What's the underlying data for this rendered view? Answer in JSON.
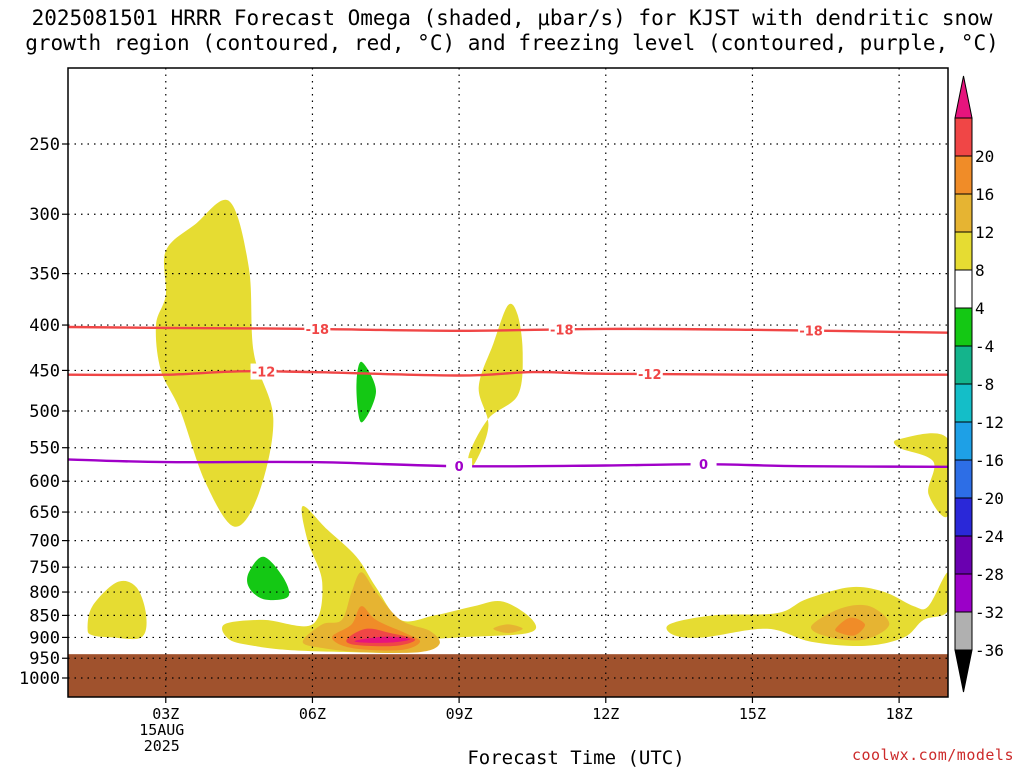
{
  "title_line1": "2025081501 HRRR Forecast Omega (shaded, μbar/s) for KJST with dendritic snow",
  "title_line2": "growth region (contoured, red, °C) and freezing level (contoured, purple, °C)",
  "credit": "coolwx.com/models",
  "chart_data": {
    "type": "contour",
    "xlabel": "Forecast Time (UTC)",
    "ylabel": "",
    "x_units": "hours since 2025-08-15 00Z",
    "xlim": [
      1,
      19
    ],
    "x_ticks": [
      {
        "x": 3,
        "label": "03Z",
        "sub": [
          "15AUG",
          "2025"
        ]
      },
      {
        "x": 6,
        "label": "06Z",
        "sub": []
      },
      {
        "x": 9,
        "label": "09Z",
        "sub": []
      },
      {
        "x": 12,
        "label": "12Z",
        "sub": []
      },
      {
        "x": 15,
        "label": "15Z",
        "sub": []
      },
      {
        "x": 18,
        "label": "18Z",
        "sub": []
      }
    ],
    "y_units": "hPa",
    "y_scale": "log",
    "ylim": [
      1050,
      200
    ],
    "y_ticks": [
      250,
      300,
      350,
      400,
      450,
      500,
      550,
      600,
      650,
      700,
      750,
      800,
      850,
      900,
      950,
      1000
    ],
    "grid": true,
    "ground_level_hPa": 940,
    "ground_color": "#a0522d",
    "colorbar": {
      "bins": [
        {
          "color": "#b0b0b0",
          "label": "-36"
        },
        {
          "color": "#9b00c8",
          "label": "-32"
        },
        {
          "color": "#6a00b0",
          "label": "-28"
        },
        {
          "color": "#2a28d8",
          "label": "-24"
        },
        {
          "color": "#2d6ee6",
          "label": "-20"
        },
        {
          "color": "#1ea0e6",
          "label": "-16"
        },
        {
          "color": "#14bec8",
          "label": "-12"
        },
        {
          "color": "#14b48c",
          "label": "-8"
        },
        {
          "color": "#14c814",
          "label": "-4"
        },
        {
          "color": "#ffffff",
          "label": "4"
        },
        {
          "color": "#e6dc32",
          "label": "8"
        },
        {
          "color": "#e6b432",
          "label": "12"
        },
        {
          "color": "#f08c28",
          "label": "16"
        },
        {
          "color": "#f04646",
          "label": "20"
        }
      ],
      "low_color": "#000000",
      "high_color": "#e6147d"
    },
    "contours": [
      {
        "label": "-18",
        "color": "#f04646",
        "type": "dendritic",
        "points": [
          [
            1,
            402
          ],
          [
            3,
            403
          ],
          [
            6,
            404
          ],
          [
            9,
            406
          ],
          [
            12,
            404
          ],
          [
            15,
            405
          ],
          [
            19,
            408
          ]
        ],
        "label_x": [
          6.1,
          11.1,
          16.2
        ]
      },
      {
        "label": "-12",
        "color": "#f04646",
        "type": "dendritic",
        "points": [
          [
            1,
            455
          ],
          [
            3,
            455
          ],
          [
            4.5,
            451
          ],
          [
            6,
            452
          ],
          [
            9,
            456
          ],
          [
            10.5,
            452
          ],
          [
            12,
            454
          ],
          [
            15,
            455
          ],
          [
            19,
            455
          ]
        ],
        "label_x": [
          5.0,
          12.9
        ]
      },
      {
        "label": "0",
        "color": "#a000c8",
        "type": "freezing",
        "points": [
          [
            1,
            567
          ],
          [
            3,
            571
          ],
          [
            6,
            571
          ],
          [
            9,
            577
          ],
          [
            12,
            576
          ],
          [
            14,
            574
          ],
          [
            16,
            577
          ],
          [
            19,
            578
          ]
        ],
        "label_x": [
          9.0,
          14.0
        ]
      }
    ],
    "shaded_regions": [
      {
        "value_bin": "4 to 8",
        "color": "#e6dc32",
        "points": [
          [
            3,
            330
          ],
          [
            3.6,
            308
          ],
          [
            4.3,
            290
          ],
          [
            4.7,
            345
          ],
          [
            4.8,
            430
          ],
          [
            5.2,
            510
          ],
          [
            4.9,
            620
          ],
          [
            4.4,
            675
          ],
          [
            3.8,
            600
          ],
          [
            3.3,
            500
          ],
          [
            2.9,
            450
          ],
          [
            2.8,
            400
          ],
          [
            3,
            370
          ]
        ]
      },
      {
        "value_bin": "4 to 8",
        "color": "#e6dc32",
        "points": [
          [
            9.3,
            575
          ],
          [
            9.6,
            520
          ],
          [
            9.4,
            470
          ],
          [
            9.7,
            420
          ],
          [
            10,
            380
          ],
          [
            10.2,
            390
          ],
          [
            10.3,
            430
          ],
          [
            10.2,
            480
          ],
          [
            9.6,
            510
          ],
          [
            9.2,
            560
          ]
        ]
      },
      {
        "value_bin": "4 to 8",
        "color": "#e6dc32",
        "points": [
          [
            1.4,
            880
          ],
          [
            1.5,
            830
          ],
          [
            2,
            780
          ],
          [
            2.4,
            790
          ],
          [
            2.6,
            850
          ],
          [
            2.5,
            900
          ],
          [
            1.9,
            900
          ],
          [
            1.5,
            895
          ]
        ]
      },
      {
        "value_bin": "4 to 8",
        "color": "#e6dc32",
        "points": [
          [
            4.2,
            870
          ],
          [
            5,
            860
          ],
          [
            6,
            870
          ],
          [
            6.2,
            780
          ],
          [
            5.9,
            700
          ],
          [
            5.8,
            640
          ],
          [
            6.3,
            680
          ],
          [
            6.9,
            730
          ],
          [
            7.3,
            790
          ],
          [
            7.8,
            860
          ],
          [
            8.5,
            850
          ],
          [
            9.3,
            830
          ],
          [
            9.9,
            820
          ],
          [
            10.5,
            860
          ],
          [
            10.4,
            890
          ],
          [
            9,
            900
          ],
          [
            8,
            910
          ],
          [
            7.9,
            935
          ],
          [
            6.8,
            935
          ],
          [
            5.5,
            930
          ],
          [
            4.8,
            920
          ],
          [
            4.3,
            905
          ]
        ]
      },
      {
        "value_bin": "4 to 8",
        "color": "#e6dc32",
        "points": [
          [
            13.3,
            870
          ],
          [
            14.2,
            850
          ],
          [
            15.5,
            845
          ],
          [
            16.1,
            815
          ],
          [
            17,
            790
          ],
          [
            17.7,
            800
          ],
          [
            18.3,
            830
          ],
          [
            18.6,
            830
          ],
          [
            19,
            760
          ],
          [
            19,
            840
          ],
          [
            18.5,
            860
          ],
          [
            18.1,
            900
          ],
          [
            17.3,
            920
          ],
          [
            16.2,
            910
          ],
          [
            15.3,
            880
          ],
          [
            14,
            900
          ],
          [
            13.4,
            895
          ]
        ]
      },
      {
        "value_bin": "4 to 8",
        "color": "#e6dc32",
        "points": [
          [
            18,
            538
          ],
          [
            19,
            538
          ],
          [
            19,
            655
          ],
          [
            18.6,
            620
          ],
          [
            18.7,
            570
          ],
          [
            18,
            550
          ]
        ]
      },
      {
        "value_bin": "8 to 12",
        "color": "#e6b432",
        "points": [
          [
            5.8,
            910
          ],
          [
            6.2,
            870
          ],
          [
            6.6,
            860
          ],
          [
            6.8,
            800
          ],
          [
            7,
            760
          ],
          [
            7.3,
            800
          ],
          [
            7.8,
            860
          ],
          [
            8.4,
            885
          ],
          [
            8.6,
            915
          ],
          [
            8.2,
            935
          ],
          [
            7,
            935
          ],
          [
            6.2,
            925
          ]
        ]
      },
      {
        "value_bin": "8 to 12",
        "color": "#e6b432",
        "points": [
          [
            16.2,
            875
          ],
          [
            16.8,
            835
          ],
          [
            17.4,
            830
          ],
          [
            17.8,
            870
          ],
          [
            17.3,
            905
          ],
          [
            16.6,
            900
          ]
        ]
      },
      {
        "value_bin": "8 to 12",
        "color": "#e6b432",
        "points": [
          [
            9.7,
            880
          ],
          [
            10,
            870
          ],
          [
            10.3,
            880
          ],
          [
            10,
            890
          ]
        ]
      },
      {
        "value_bin": "12 to 16",
        "color": "#f08c28",
        "points": [
          [
            6.4,
            900
          ],
          [
            6.8,
            870
          ],
          [
            7,
            830
          ],
          [
            7.3,
            860
          ],
          [
            7.9,
            890
          ],
          [
            8.2,
            910
          ],
          [
            7.8,
            930
          ],
          [
            6.8,
            925
          ]
        ]
      },
      {
        "value_bin": "12 to 16",
        "color": "#f08c28",
        "points": [
          [
            16.7,
            880
          ],
          [
            17,
            855
          ],
          [
            17.3,
            870
          ],
          [
            17.1,
            895
          ],
          [
            16.8,
            890
          ]
        ]
      },
      {
        "value_bin": "16 to 20",
        "color": "#f04646",
        "points": [
          [
            6.7,
            905
          ],
          [
            7.1,
            880
          ],
          [
            7.6,
            890
          ],
          [
            8.1,
            905
          ],
          [
            7.7,
            920
          ],
          [
            6.9,
            918
          ]
        ]
      },
      {
        "value_bin": "> 20",
        "color": "#e6147d",
        "points": [
          [
            6.9,
            907
          ],
          [
            7.5,
            898
          ],
          [
            8,
            904
          ],
          [
            7.6,
            912
          ],
          [
            7,
            912
          ]
        ]
      },
      {
        "value_bin": "-8 to -4",
        "color": "#14c814",
        "points": [
          [
            6.9,
            470
          ],
          [
            7,
            440
          ],
          [
            7.3,
            475
          ],
          [
            7,
            515
          ]
        ]
      },
      {
        "value_bin": "-8 to -4",
        "color": "#14c814",
        "points": [
          [
            4.7,
            760
          ],
          [
            5,
            730
          ],
          [
            5.4,
            770
          ],
          [
            5.5,
            810
          ],
          [
            5,
            815
          ],
          [
            4.7,
            790
          ]
        ]
      }
    ]
  }
}
